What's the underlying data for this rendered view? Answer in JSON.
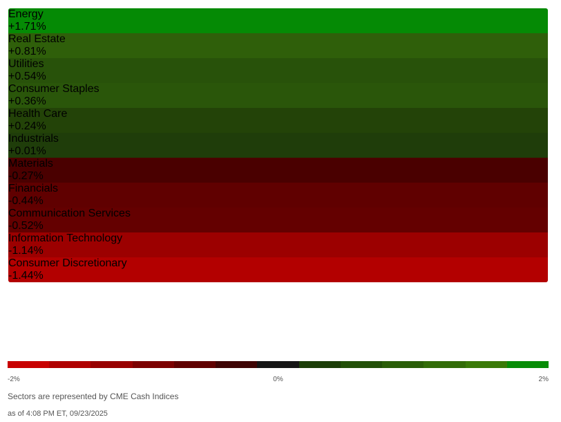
{
  "sectors": [
    {
      "name": "Energy",
      "change": "+1.71%",
      "color": "#058a05"
    },
    {
      "name": "Real Estate",
      "change": "+0.81%",
      "color": "#2f5f0a"
    },
    {
      "name": "Utilities",
      "change": "+0.54%",
      "color": "#28520a"
    },
    {
      "name": "Consumer Staples",
      "change": "+0.36%",
      "color": "#2a560a"
    },
    {
      "name": "Health Care",
      "change": "+0.24%",
      "color": "#234308"
    },
    {
      "name": "Industrials",
      "change": "+0.01%",
      "color": "#1f3d0a"
    },
    {
      "name": "Materials",
      "change": "-0.27%",
      "color": "#4a0000"
    },
    {
      "name": "Financials",
      "change": "-0.44%",
      "color": "#600000"
    },
    {
      "name": "Communication Services",
      "change": "-0.52%",
      "color": "#640000"
    },
    {
      "name": "Information Technology",
      "change": "-1.14%",
      "color": "#9c0000"
    },
    {
      "name": "Consumer Discretionary",
      "change": "-1.44%",
      "color": "#b30000"
    }
  ],
  "scale": {
    "colors": [
      "#c80000",
      "#b00000",
      "#980000",
      "#7c0000",
      "#600000",
      "#3e0404",
      "#141414",
      "#1c3e08",
      "#225008",
      "#2a5e08",
      "#326c08",
      "#3a7a08",
      "#078c07"
    ],
    "labels": [
      "-2%",
      "0%",
      "2%"
    ]
  },
  "note": "Sectors are represented by CME Cash Indices",
  "timestamp": "as of 4:08 PM ET, 09/23/2025"
}
